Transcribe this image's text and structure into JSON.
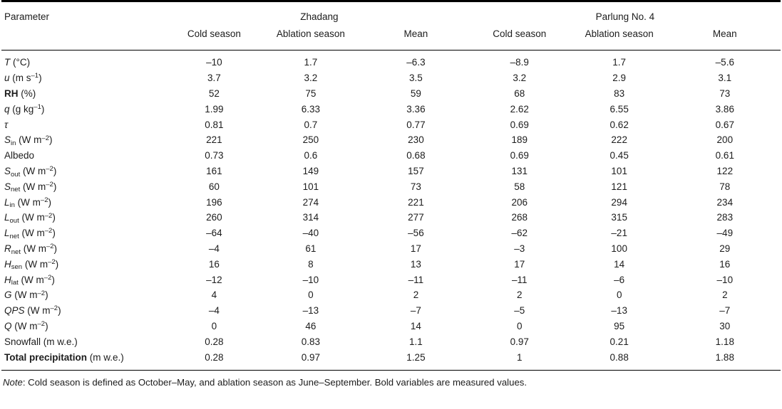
{
  "table": {
    "header": {
      "parameter": "Parameter",
      "groups": [
        {
          "name": "Zhadang",
          "cols": [
            "Cold season",
            "Ablation season",
            "Mean"
          ]
        },
        {
          "name": "Parlung No. 4",
          "cols": [
            "Cold season",
            "Ablation season",
            "Mean"
          ]
        }
      ]
    },
    "rows": [
      {
        "label_html": "<i>T</i> (°C)",
        "values": [
          "–10",
          "1.7",
          "–6.3",
          "–8.9",
          "1.7",
          "–5.6"
        ]
      },
      {
        "label_html": "<i>u</i> (m s<sup>–1</sup>)",
        "values": [
          "3.7",
          "3.2",
          "3.5",
          "3.2",
          "2.9",
          "3.1"
        ]
      },
      {
        "label_html": "<b>RH</b> (%)",
        "values": [
          "52",
          "75",
          "59",
          "68",
          "83",
          "73"
        ]
      },
      {
        "label_html": "<i>q</i> (g kg<sup>–1</sup>)",
        "values": [
          "1.99",
          "6.33",
          "3.36",
          "2.62",
          "6.55",
          "3.86"
        ]
      },
      {
        "label_html": "<i>τ</i>",
        "values": [
          "0.81",
          "0.7",
          "0.77",
          "0.69",
          "0.62",
          "0.67"
        ]
      },
      {
        "label_html": "<i>S</i><sub>in</sub> (W m<sup>–2</sup>)",
        "values": [
          "221",
          "250",
          "230",
          "189",
          "222",
          "200"
        ]
      },
      {
        "label_html": "Albedo",
        "values": [
          "0.73",
          "0.6",
          "0.68",
          "0.69",
          "0.45",
          "0.61"
        ]
      },
      {
        "label_html": "<i>S</i><sub>out</sub> (W m<sup>–2</sup>)",
        "values": [
          "161",
          "149",
          "157",
          "131",
          "101",
          "122"
        ]
      },
      {
        "label_html": "<i>S</i><sub>net</sub> (W m<sup>–2</sup>)",
        "values": [
          "60",
          "101",
          "73",
          "58",
          "121",
          "78"
        ]
      },
      {
        "label_html": "<i>L</i><sub>in</sub> (W m<sup>–2</sup>)",
        "values": [
          "196",
          "274",
          "221",
          "206",
          "294",
          "234"
        ]
      },
      {
        "label_html": "<i>L</i><sub>out</sub> (W m<sup>–2</sup>)",
        "values": [
          "260",
          "314",
          "277",
          "268",
          "315",
          "283"
        ]
      },
      {
        "label_html": "<i>L</i><sub>net</sub> (W m<sup>–2</sup>)",
        "values": [
          "–64",
          "–40",
          "–56",
          "–62",
          "–21",
          "–49"
        ]
      },
      {
        "label_html": "<i>R</i><sub>net</sub> (W m<sup>–2</sup>)",
        "values": [
          "–4",
          "61",
          "17",
          "–3",
          "100",
          "29"
        ]
      },
      {
        "label_html": "<i>H</i><sub>sen</sub> (W m<sup>–2</sup>)",
        "values": [
          "16",
          "8",
          "13",
          "17",
          "14",
          "16"
        ]
      },
      {
        "label_html": "<i>H</i><sub>lat</sub> (W m<sup>–2</sup>)",
        "values": [
          "–12",
          "–10",
          "–11",
          "–11",
          "–6",
          "–10"
        ]
      },
      {
        "label_html": "<i>G</i> (W m<sup>–2</sup>)",
        "values": [
          "4",
          "0",
          "2",
          "2",
          "0",
          "2"
        ]
      },
      {
        "label_html": "<i>QPS</i> (W m<sup>–2</sup>)",
        "values": [
          "–4",
          "–13",
          "–7",
          "–5",
          "–13",
          "–7"
        ]
      },
      {
        "label_html": "<i>Q</i> (W m<sup>–2</sup>)",
        "values": [
          "0",
          "46",
          "14",
          "0",
          "95",
          "30"
        ]
      },
      {
        "label_html": "Snowfall (m w.e.)",
        "values": [
          "0.28",
          "0.83",
          "1.1",
          "0.97",
          "0.21",
          "1.18"
        ]
      },
      {
        "label_html": "<b>Total precipitation</b> (m w.e.)",
        "values": [
          "0.28",
          "0.97",
          "1.25",
          "1",
          "0.88",
          "1.88"
        ]
      }
    ]
  },
  "note": {
    "prefix": "Note",
    "text": ": Cold season is defined as October–May, and ablation season as June–September. Bold variables are measured values."
  }
}
